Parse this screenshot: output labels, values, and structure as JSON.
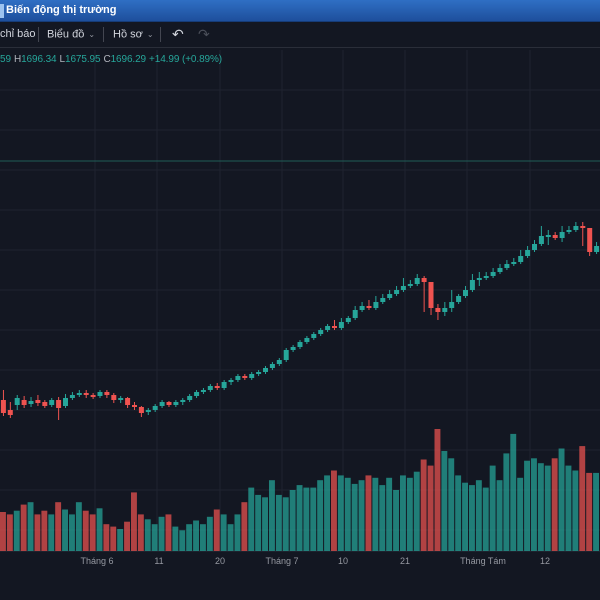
{
  "window": {
    "title": "Biến động thị trường"
  },
  "toolbar": {
    "indicators": "chỉ báo",
    "chart_menu": "Biểu đồ",
    "profile_menu": "Hồ sơ"
  },
  "ohlc": {
    "o_value": "59",
    "h_label": "H",
    "h_value": "1696.34",
    "l_label": "L",
    "l_value": "1675.95",
    "c_label": "C",
    "c_value": "1696.29",
    "change": "+14.99 (+0.89%)"
  },
  "colors": {
    "up": "#26a69a",
    "down": "#ef5350",
    "background": "#131722",
    "grid": "#1f2330"
  },
  "chart_data": {
    "type": "candlestick",
    "x_tick_labels": [
      "Tháng 6",
      "11",
      "20",
      "Tháng 7",
      "10",
      "21",
      "Tháng Tám",
      "12"
    ],
    "price_candles_chart_units": [
      [
        350,
        363,
        340,
        366
      ],
      [
        360,
        365,
        352,
        368
      ],
      [
        355,
        348,
        345,
        360
      ],
      [
        350,
        355,
        346,
        358
      ],
      [
        354,
        351,
        347,
        357
      ],
      [
        350,
        353,
        345,
        356
      ],
      [
        352,
        356,
        350,
        358
      ],
      [
        355,
        350,
        348,
        357
      ],
      [
        350,
        358,
        347,
        370
      ],
      [
        356,
        348,
        344,
        358
      ],
      [
        348,
        345,
        342,
        350
      ],
      [
        345,
        343,
        340,
        347
      ],
      [
        343,
        345,
        340,
        348
      ],
      [
        345,
        347,
        343,
        349
      ],
      [
        346,
        342,
        340,
        348
      ],
      [
        342,
        345,
        340,
        348
      ],
      [
        345,
        350,
        343,
        353
      ],
      [
        350,
        348,
        346,
        353
      ],
      [
        348,
        355,
        347,
        358
      ],
      [
        355,
        357,
        352,
        360
      ],
      [
        357,
        363,
        356,
        367
      ],
      [
        362,
        360,
        358,
        365
      ],
      [
        360,
        356,
        354,
        362
      ],
      [
        356,
        352,
        350,
        358
      ],
      [
        352,
        355,
        351,
        357
      ],
      [
        355,
        352,
        350,
        357
      ],
      [
        352,
        350,
        348,
        355
      ],
      [
        350,
        346,
        344,
        352
      ],
      [
        346,
        342,
        340,
        348
      ],
      [
        342,
        340,
        338,
        344
      ],
      [
        340,
        336,
        334,
        342
      ],
      [
        336,
        338,
        333,
        340
      ],
      [
        338,
        332,
        330,
        340
      ],
      [
        332,
        330,
        328,
        335
      ],
      [
        330,
        326,
        324,
        332
      ],
      [
        326,
        328,
        324,
        330
      ],
      [
        328,
        324,
        322,
        330
      ],
      [
        324,
        322,
        320,
        326
      ],
      [
        322,
        318,
        316,
        324
      ],
      [
        318,
        314,
        312,
        320
      ],
      [
        314,
        310,
        308,
        316
      ],
      [
        310,
        300,
        298,
        312
      ],
      [
        300,
        297,
        295,
        302
      ],
      [
        297,
        292,
        290,
        299
      ],
      [
        292,
        288,
        286,
        294
      ],
      [
        288,
        284,
        282,
        290
      ],
      [
        284,
        280,
        278,
        286
      ],
      [
        280,
        276,
        274,
        282
      ],
      [
        276,
        278,
        270,
        280
      ],
      [
        278,
        272,
        268,
        280
      ],
      [
        272,
        268,
        266,
        274
      ],
      [
        268,
        260,
        256,
        270
      ],
      [
        260,
        256,
        252,
        262
      ],
      [
        256,
        258,
        250,
        260
      ],
      [
        258,
        252,
        246,
        260
      ],
      [
        252,
        248,
        244,
        254
      ],
      [
        248,
        244,
        240,
        250
      ],
      [
        244,
        240,
        236,
        246
      ],
      [
        240,
        236,
        228,
        242
      ],
      [
        236,
        234,
        230,
        238
      ],
      [
        234,
        228,
        224,
        236
      ],
      [
        228,
        232,
        226,
        262
      ],
      [
        232,
        258,
        250,
        265
      ],
      [
        258,
        262,
        254,
        270
      ],
      [
        262,
        258,
        252,
        266
      ],
      [
        258,
        252,
        240,
        262
      ],
      [
        252,
        246,
        244,
        254
      ],
      [
        246,
        240,
        236,
        248
      ],
      [
        240,
        230,
        224,
        242
      ],
      [
        230,
        228,
        222,
        236
      ],
      [
        228,
        226,
        222,
        230
      ],
      [
        226,
        222,
        218,
        228
      ],
      [
        222,
        218,
        214,
        224
      ],
      [
        218,
        214,
        210,
        220
      ],
      [
        214,
        212,
        208,
        216
      ],
      [
        212,
        206,
        200,
        214
      ],
      [
        206,
        200,
        196,
        208
      ],
      [
        200,
        194,
        190,
        202
      ],
      [
        194,
        186,
        176,
        196
      ],
      [
        186,
        185,
        180,
        195
      ],
      [
        185,
        188,
        182,
        190
      ],
      [
        188,
        182,
        176,
        192
      ],
      [
        182,
        180,
        176,
        184
      ],
      [
        180,
        176,
        172,
        182
      ],
      [
        176,
        178,
        172,
        196
      ],
      [
        178,
        202,
        200,
        206
      ],
      [
        202,
        196,
        192,
        204
      ]
    ],
    "volume_relative": [
      0.32,
      0.3,
      0.33,
      0.38,
      0.4,
      0.3,
      0.33,
      0.3,
      0.4,
      0.34,
      0.3,
      0.4,
      0.33,
      0.3,
      0.35,
      0.22,
      0.2,
      0.18,
      0.24,
      0.48,
      0.3,
      0.26,
      0.22,
      0.28,
      0.3,
      0.2,
      0.17,
      0.22,
      0.25,
      0.22,
      0.28,
      0.34,
      0.3,
      0.22,
      0.3,
      0.4,
      0.52,
      0.46,
      0.44,
      0.58,
      0.46,
      0.44,
      0.5,
      0.54,
      0.52,
      0.52,
      0.58,
      0.62,
      0.66,
      0.62,
      0.6,
      0.55,
      0.58,
      0.62,
      0.6,
      0.54,
      0.6,
      0.5,
      0.62,
      0.6,
      0.65,
      0.75,
      0.7,
      1.0,
      0.82,
      0.76,
      0.62,
      0.56,
      0.54,
      0.58,
      0.52,
      0.7,
      0.58,
      0.8,
      0.96,
      0.6,
      0.74,
      0.76,
      0.72,
      0.7,
      0.76,
      0.84,
      0.7,
      0.66,
      0.86,
      0.64,
      0.64
    ]
  }
}
